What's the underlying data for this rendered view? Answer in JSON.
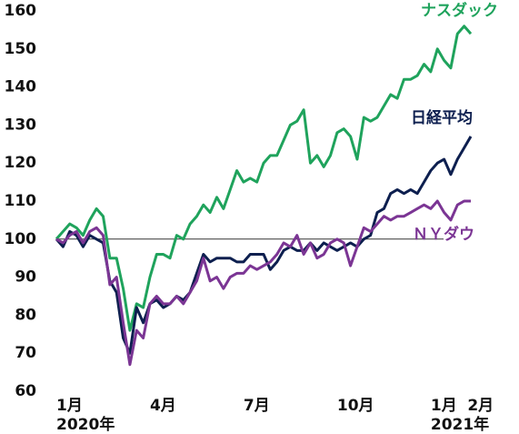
{
  "chart_data": {
    "type": "line",
    "x": [
      0,
      1,
      2,
      3,
      4,
      5,
      6,
      7,
      8,
      9,
      10,
      11,
      12,
      13,
      14,
      15,
      16,
      17,
      18,
      19,
      20,
      21,
      22,
      23,
      24,
      25,
      26,
      27,
      28,
      29,
      30,
      31,
      32,
      33,
      34,
      35,
      36,
      37,
      38,
      39,
      40,
      41,
      42,
      43,
      44,
      45,
      46,
      47,
      48,
      49,
      50,
      51,
      52,
      53,
      54,
      55,
      56,
      57,
      58,
      59,
      60,
      61,
      62
    ],
    "xlim": [
      0,
      62
    ],
    "xticks": [
      {
        "value": 0,
        "label": "1月"
      },
      {
        "value": 14,
        "label": "4月"
      },
      {
        "value": 28,
        "label": "7月"
      },
      {
        "value": 42,
        "label": "10月"
      },
      {
        "value": 56,
        "label": "1月"
      },
      {
        "value": 61.5,
        "label": "2月"
      }
    ],
    "x_year_labels": [
      {
        "value": 0,
        "label": "2020年"
      },
      {
        "value": 56,
        "label": "2021年"
      }
    ],
    "ylim": [
      60,
      160
    ],
    "yticks": [
      60,
      70,
      80,
      90,
      100,
      110,
      120,
      130,
      140,
      150,
      160
    ],
    "reference_line": 100,
    "grid": false,
    "series": [
      {
        "name": "ナスダック",
        "color": "#1fa35c",
        "values": [
          100,
          102,
          104,
          103,
          101,
          105,
          108,
          106,
          95,
          95,
          87,
          76,
          83,
          82,
          90,
          96,
          96,
          95,
          101,
          100,
          104,
          106,
          109,
          107,
          111,
          108,
          113,
          118,
          115,
          116,
          115,
          120,
          122,
          122,
          126,
          130,
          131,
          134,
          120,
          122,
          119,
          122,
          128,
          129,
          127,
          121,
          132,
          131,
          132,
          135,
          138,
          137,
          142,
          142,
          143,
          146,
          144,
          150,
          147,
          145,
          154,
          156,
          154
        ]
      },
      {
        "name": "日経平均",
        "color": "#0d1f4f",
        "values": [
          100,
          98,
          102,
          101,
          98,
          101,
          100,
          99,
          89,
          86,
          74,
          70,
          82,
          78,
          83,
          84,
          82,
          83,
          85,
          84,
          86,
          91,
          96,
          94,
          95,
          95,
          95,
          94,
          94,
          96,
          96,
          96,
          92,
          94,
          97,
          98,
          97,
          97,
          99,
          97,
          99,
          98,
          97,
          98,
          99,
          98,
          100,
          101,
          107,
          108,
          112,
          113,
          112,
          113,
          112,
          115,
          118,
          120,
          121,
          117,
          121,
          124,
          127
        ]
      },
      {
        "name": "ＮＹダウ",
        "color": "#7b3594",
        "values": [
          100,
          99,
          101,
          102,
          99,
          102,
          103,
          101,
          88,
          90,
          78,
          67,
          76,
          74,
          83,
          85,
          83,
          83,
          85,
          83,
          86,
          89,
          95,
          89,
          90,
          87,
          90,
          91,
          91,
          93,
          92,
          93,
          94,
          96,
          99,
          98,
          101,
          96,
          99,
          95,
          96,
          99,
          100,
          99,
          93,
          98,
          103,
          102,
          104,
          106,
          105,
          106,
          106,
          107,
          108,
          109,
          108,
          110,
          107,
          105,
          109,
          110,
          110
        ]
      }
    ]
  }
}
